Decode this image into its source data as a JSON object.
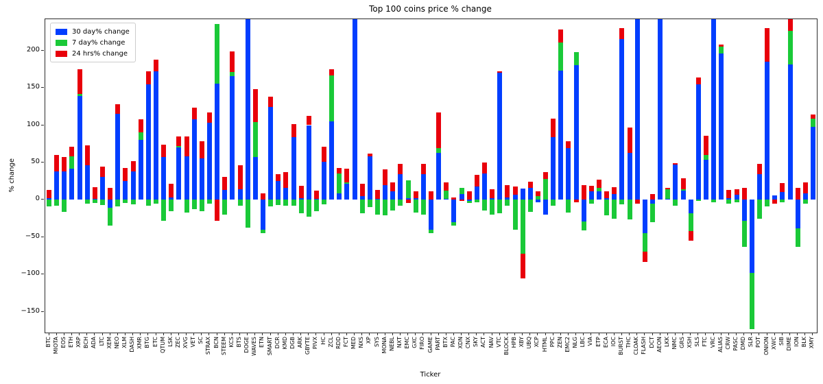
{
  "title": "Top 100 coins price % change",
  "xlabel": "Ticker",
  "ylabel": "% change",
  "legend": {
    "items": [
      {
        "label": "30 day% change",
        "color": "#023EFF"
      },
      {
        "label": "7 day% change",
        "color": "#1AC938"
      },
      {
        "label": "24 hrs% change",
        "color": "#E8000B"
      }
    ]
  },
  "axes": {
    "y_ticks": [
      200,
      150,
      100,
      50,
      0,
      -50,
      -100,
      -150
    ],
    "ylim": [
      -178,
      242
    ]
  },
  "chart_data": {
    "type": "bar",
    "stacked": true,
    "title": "Top 100 coins price % change",
    "xlabel": "Ticker",
    "ylabel": "% change",
    "ylim": [
      -178,
      242
    ],
    "grid": false,
    "legend_position": "upper left",
    "categories": [
      "BTC",
      "MIOTA",
      "EOS",
      "ETH",
      "XRP",
      "BCH",
      "ADA",
      "LTC",
      "XEM",
      "NEO",
      "XLM",
      "DASH",
      "XMR",
      "BTG",
      "ETC",
      "QTUM",
      "LSK",
      "ZEC",
      "XVG",
      "VET",
      "SC",
      "STRAX",
      "BCN",
      "STEEM",
      "KCS",
      "BTS",
      "DOGE",
      "WAVES",
      "ETN",
      "SMART",
      "DCR",
      "KMD",
      "DGB",
      "ARK",
      "GBYTE",
      "PIVX",
      "HC",
      "ZCL",
      "RDD",
      "FCT",
      "MED",
      "NXS",
      "XP",
      "SYS",
      "MONA",
      "NEBL",
      "NXT",
      "EMC",
      "GXC",
      "FIRO",
      "GAME",
      "PART",
      "BTX",
      "PAC",
      "XDN",
      "CNX",
      "SKY",
      "ACT",
      "NAV",
      "VTC",
      "BLOCK",
      "HPB",
      "XBY",
      "UBQ",
      "XCP",
      "HTML",
      "PPC",
      "ZEN",
      "EMC2",
      "NLG",
      "LBC",
      "VIA",
      "ETP",
      "ECA",
      "IOC",
      "BURST",
      "THC",
      "CLOAK",
      "FLASH",
      "DCT",
      "AEON",
      "LKK",
      "NMC",
      "GRS",
      "XSH",
      "SLS",
      "FTC",
      "VRC",
      "ALIAS",
      "CRW",
      "PASC",
      "DMD",
      "SLR",
      "POT",
      "ONION",
      "XWC",
      "SIB",
      "DIME",
      "ION",
      "BLK",
      "XMY"
    ],
    "series": [
      {
        "name": "30 day% change",
        "color": "#023EFF",
        "values": [
          2,
          38,
          38,
          42,
          139,
          46,
          1,
          31,
          -11,
          115,
          25,
          38,
          80,
          155,
          172,
          57,
          3,
          70,
          58,
          108,
          55,
          103,
          156,
          13,
          166,
          14,
          260,
          57,
          -40,
          124,
          25,
          16,
          84,
          2,
          100,
          1,
          51,
          105,
          9,
          21,
          260,
          5,
          58,
          1,
          20,
          11,
          34,
          2,
          2,
          34,
          -40,
          63,
          1,
          -30,
          8,
          -2,
          18,
          35,
          2,
          170,
          3,
          7,
          15,
          16,
          -3,
          -20,
          84,
          173,
          69,
          180,
          -29,
          11,
          11,
          2,
          8,
          215,
          63,
          260,
          -45,
          -5,
          260,
          1,
          47,
          12,
          -18,
          155,
          54,
          260,
          196,
          2,
          7,
          -28,
          -98,
          34,
          185,
          6,
          10,
          181,
          -38,
          9,
          98
        ]
      },
      {
        "name": "7 day% change",
        "color": "#1AC938",
        "values": [
          -9,
          -8,
          -16,
          16,
          3,
          -5,
          -4,
          -7,
          -24,
          -9,
          -4,
          -6,
          10,
          -8,
          -5,
          -28,
          -15,
          2,
          -17,
          -13,
          -15,
          -5,
          80,
          -20,
          5,
          -8,
          -37,
          47,
          -5,
          -9,
          -7,
          -8,
          -8,
          -18,
          -23,
          -15,
          -6,
          62,
          26,
          2,
          0,
          -18,
          -10,
          -20,
          -21,
          -14,
          -8,
          24,
          -17,
          -20,
          -5,
          6,
          11,
          -5,
          8,
          -2,
          -3,
          -14,
          -20,
          -18,
          -8,
          -40,
          -72,
          -16,
          5,
          28,
          -8,
          38,
          -17,
          18,
          -12,
          -5,
          5,
          -21,
          -25,
          -6,
          -26,
          0,
          -25,
          -25,
          0,
          13,
          -8,
          2,
          -24,
          -2,
          6,
          -3,
          9,
          -5,
          -3,
          -35,
          -75,
          -25,
          -9,
          0,
          -3,
          45,
          -25,
          -5,
          11
        ]
      },
      {
        "name": "24 hrs% change",
        "color": "#E8000B",
        "values": [
          11,
          22,
          19,
          13,
          33,
          27,
          16,
          13,
          16,
          13,
          18,
          14,
          18,
          17,
          16,
          17,
          18,
          13,
          27,
          15,
          23,
          14,
          -28,
          18,
          28,
          32,
          2,
          44,
          9,
          14,
          9,
          21,
          17,
          17,
          12,
          11,
          20,
          8,
          8,
          19,
          0,
          16,
          4,
          12,
          21,
          12,
          14,
          -4,
          9,
          14,
          11,
          48,
          11,
          3,
          -2,
          11,
          15,
          15,
          12,
          2,
          17,
          11,
          -33,
          8,
          6,
          9,
          25,
          17,
          9,
          -3,
          20,
          8,
          11,
          9,
          9,
          15,
          34,
          -5,
          -13,
          8,
          0,
          2,
          2,
          15,
          -13,
          9,
          26,
          0,
          3,
          11,
          7,
          16,
          0,
          14,
          45,
          -5,
          12,
          18,
          16,
          14,
          5
        ]
      }
    ]
  }
}
